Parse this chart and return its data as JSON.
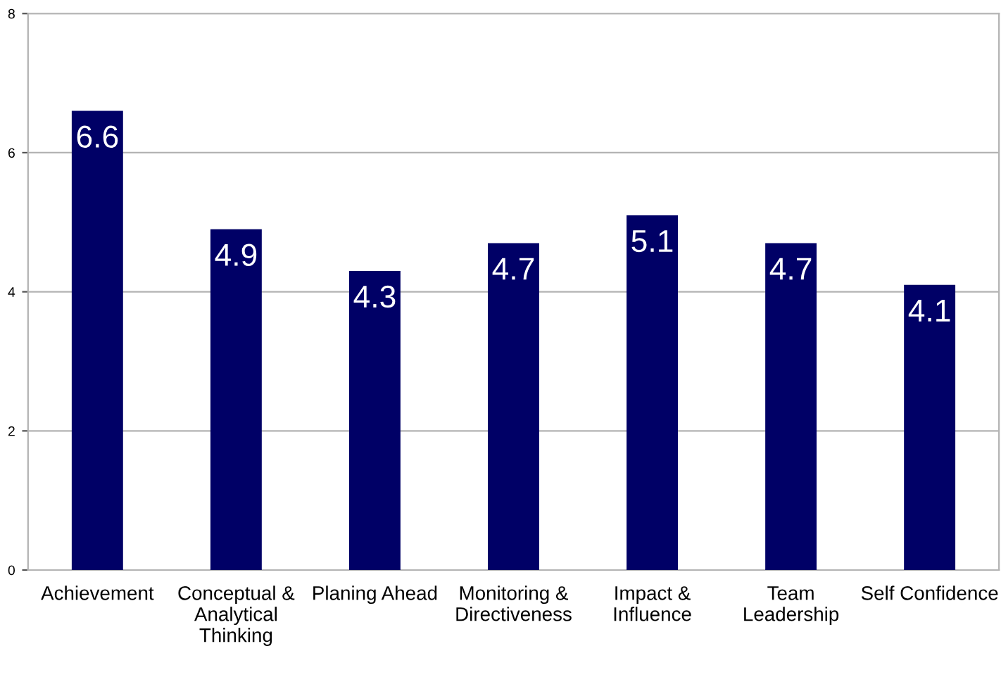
{
  "chart_data": {
    "type": "bar",
    "categories": [
      "Achievement",
      "Conceptual &\nAnalytical\nThinking",
      "Planing Ahead",
      "Monitoring &\nDirectiveness",
      "Impact &\nInfluence",
      "Team\nLeadership",
      "Self Confidence"
    ],
    "values": [
      6.6,
      4.9,
      4.3,
      4.7,
      5.1,
      4.7,
      4.1
    ],
    "color": "#000066",
    "ylim": [
      0,
      8
    ],
    "yticks": [
      0,
      2,
      4,
      6,
      8
    ],
    "grid": "y",
    "data_labels": true
  }
}
